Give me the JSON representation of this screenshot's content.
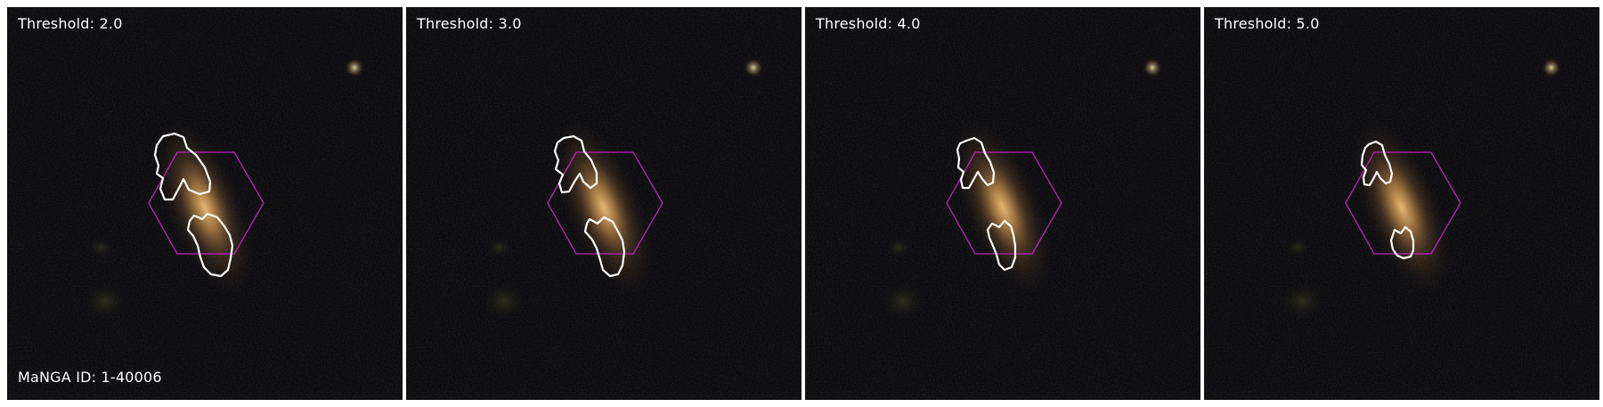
{
  "figure": {
    "manga_id_label": "MaNGA ID: 1-40006",
    "hexagon_color": "#c020c0",
    "contour_color": "#ffffff",
    "background_color": "#050507",
    "galaxy_core_color": "#e8b060",
    "panels": [
      {
        "threshold_label": "Threshold: 2.0"
      },
      {
        "threshold_label": "Threshold: 3.0"
      },
      {
        "threshold_label": "Threshold: 4.0"
      },
      {
        "threshold_label": "Threshold: 5.0"
      }
    ]
  }
}
